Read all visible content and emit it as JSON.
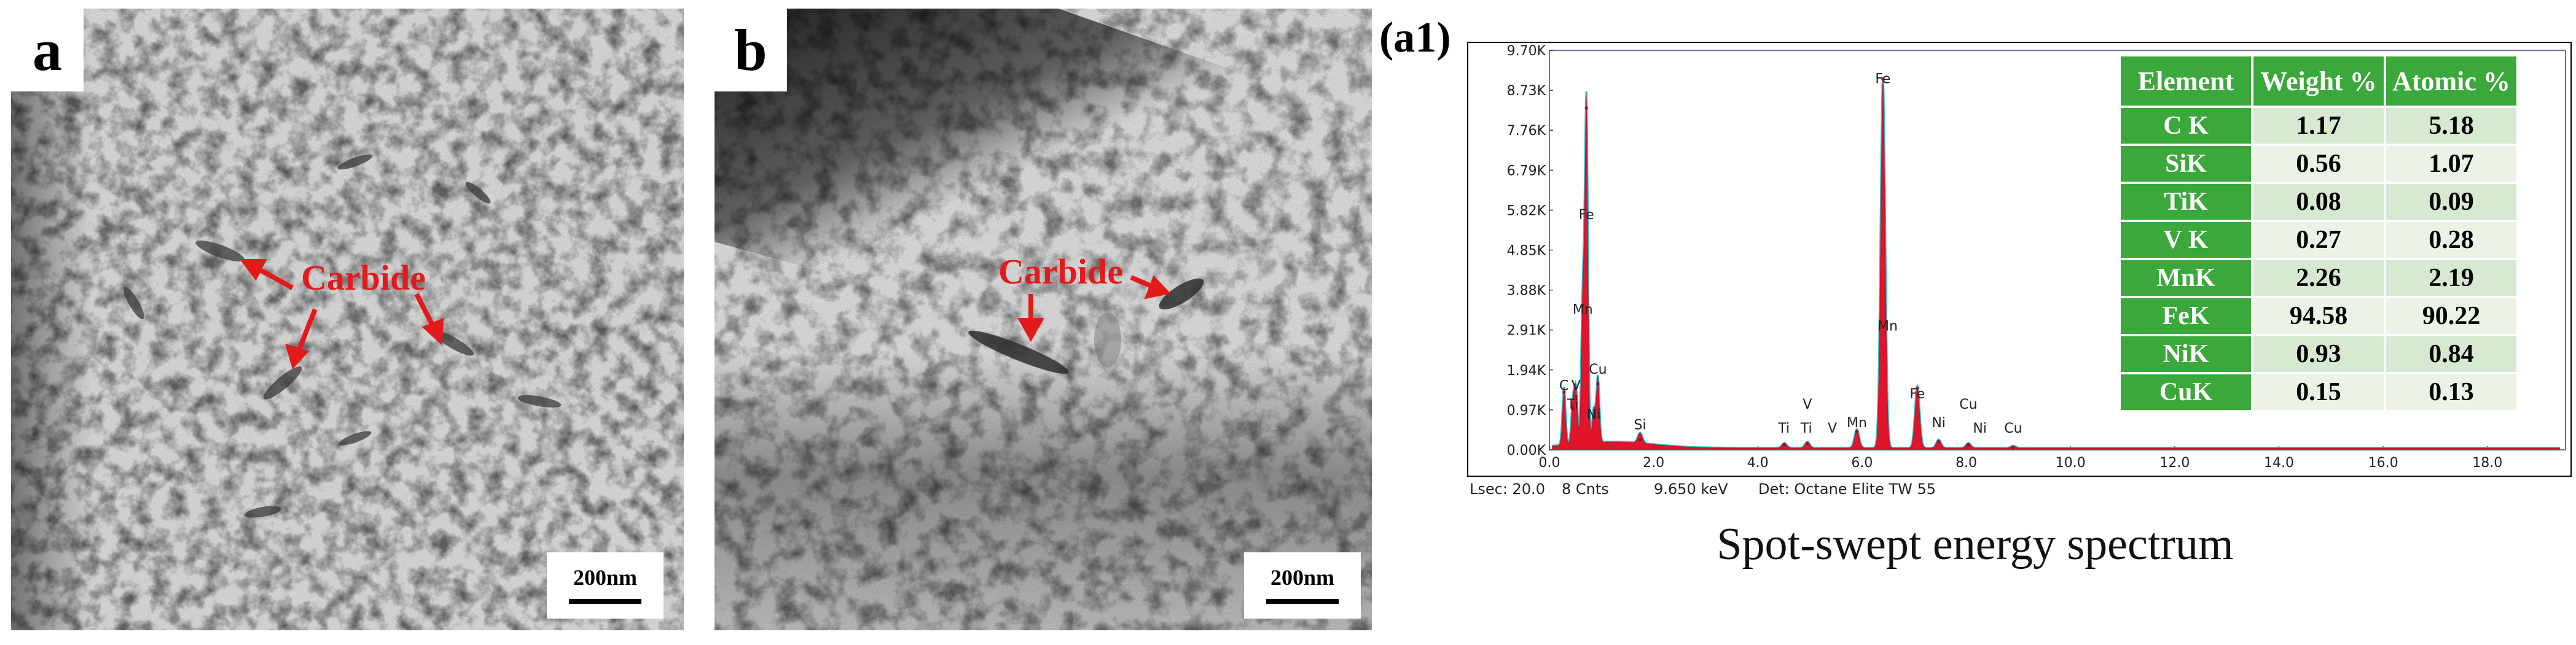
{
  "panels": {
    "a": {
      "letter": "a",
      "arrow_label": "Carbide",
      "scale_label": "200nm"
    },
    "b": {
      "letter": "b",
      "arrow_label": "Carbide",
      "scale_label": "200nm"
    },
    "a1": {
      "letter": "(a1)"
    }
  },
  "colors": {
    "annotation": "#e31a1c",
    "table_header": "#3aa83a",
    "spectrum_fill": "#e0001a",
    "spectrum_line": "#22c8d2"
  },
  "spectrum": {
    "y_ticks": [
      "9.70K",
      "8.73K",
      "7.76K",
      "6.79K",
      "5.82K",
      "4.85K",
      "3.88K",
      "2.91K",
      "1.94K",
      "0.97K",
      "0.00K"
    ],
    "x_ticks": [
      "0.0",
      "2.0",
      "4.0",
      "6.0",
      "8.0",
      "10.0",
      "12.0",
      "14.0",
      "16.0",
      "18.0"
    ],
    "footer": {
      "lsec": "Lsec: 20.0",
      "cnts": "8 Cnts",
      "kev": "9.650 keV",
      "det": "Det: Octane Elite TW 55"
    },
    "caption": "Spot-swept energy spectrum",
    "peak_labels": [
      {
        "text": "Fe",
        "x": 6.4,
        "y": 8.9
      },
      {
        "text": "Fe",
        "x": 0.71,
        "y": 5.6
      },
      {
        "text": "Mn",
        "x": 0.64,
        "y": 3.3
      },
      {
        "text": "Cu",
        "x": 0.93,
        "y": 1.85
      },
      {
        "text": "C",
        "x": 0.28,
        "y": 1.45
      },
      {
        "text": "V",
        "x": 0.51,
        "y": 1.45
      },
      {
        "text": "Ti",
        "x": 0.45,
        "y": 1.0
      },
      {
        "text": "Ni",
        "x": 0.85,
        "y": 0.75
      },
      {
        "text": "Si",
        "x": 1.74,
        "y": 0.5
      },
      {
        "text": "Ti",
        "x": 4.5,
        "y": 0.42
      },
      {
        "text": "V",
        "x": 4.95,
        "y": 1.0
      },
      {
        "text": "Ti",
        "x": 4.93,
        "y": 0.42
      },
      {
        "text": "V",
        "x": 5.43,
        "y": 0.42
      },
      {
        "text": "Mn",
        "x": 5.9,
        "y": 0.55
      },
      {
        "text": "Mn",
        "x": 6.49,
        "y": 2.9
      },
      {
        "text": "Fe",
        "x": 7.06,
        "y": 1.25
      },
      {
        "text": "Ni",
        "x": 7.47,
        "y": 0.55
      },
      {
        "text": "Cu",
        "x": 8.04,
        "y": 1.0
      },
      {
        "text": "Ni",
        "x": 8.26,
        "y": 0.42
      },
      {
        "text": "Cu",
        "x": 8.9,
        "y": 0.42
      }
    ]
  },
  "chart_data": {
    "type": "area",
    "xlabel": "",
    "ylabel": "",
    "xlim": [
      0.0,
      19.5
    ],
    "ylim": [
      0.0,
      9.7
    ],
    "peaks": [
      {
        "energy_keV": 0.28,
        "counts_K": 1.4
      },
      {
        "energy_keV": 0.45,
        "counts_K": 1.0
      },
      {
        "energy_keV": 0.51,
        "counts_K": 1.3
      },
      {
        "energy_keV": 0.64,
        "counts_K": 3.5
      },
      {
        "energy_keV": 0.71,
        "counts_K": 8.3
      },
      {
        "energy_keV": 0.85,
        "counts_K": 0.8
      },
      {
        "energy_keV": 0.93,
        "counts_K": 1.6
      },
      {
        "energy_keV": 1.74,
        "counts_K": 0.25
      },
      {
        "energy_keV": 4.51,
        "counts_K": 0.12
      },
      {
        "energy_keV": 4.95,
        "counts_K": 0.15
      },
      {
        "energy_keV": 5.9,
        "counts_K": 0.45
      },
      {
        "energy_keV": 6.4,
        "counts_K": 9.0
      },
      {
        "energy_keV": 7.06,
        "counts_K": 1.5
      },
      {
        "energy_keV": 7.47,
        "counts_K": 0.2
      },
      {
        "energy_keV": 8.04,
        "counts_K": 0.12
      },
      {
        "energy_keV": 8.9,
        "counts_K": 0.05
      }
    ]
  },
  "table": {
    "headers": [
      "Element",
      "Weight %",
      "Atomic %"
    ],
    "rows": [
      [
        "C K",
        "1.17",
        "5.18"
      ],
      [
        "SiK",
        "0.56",
        "1.07"
      ],
      [
        "TiK",
        "0.08",
        "0.09"
      ],
      [
        "V K",
        "0.27",
        "0.28"
      ],
      [
        "MnK",
        "2.26",
        "2.19"
      ],
      [
        "FeK",
        "94.58",
        "90.22"
      ],
      [
        "NiK",
        "0.93",
        "0.84"
      ],
      [
        "CuK",
        "0.15",
        "0.13"
      ]
    ]
  }
}
